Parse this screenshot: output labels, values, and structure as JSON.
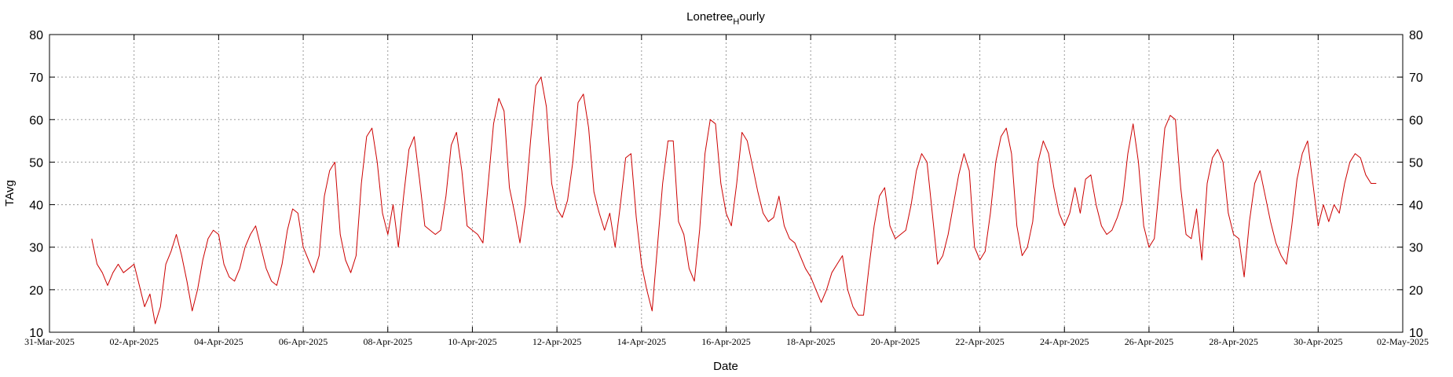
{
  "chart_data": {
    "type": "line",
    "title": "Lonetree",
    "title_subscript": "H",
    "title_suffix": "ourly",
    "xlabel": "Date",
    "ylabel": "TAvg",
    "ylim": [
      10,
      80
    ],
    "yticks": [
      "10",
      "20",
      "30",
      "40",
      "50",
      "60",
      "70",
      "80"
    ],
    "y_tick_values": [
      10,
      20,
      30,
      40,
      50,
      60,
      70,
      80
    ],
    "xlim": [
      "2025-03-31",
      "2025-05-02"
    ],
    "xticks": [
      "31-Mar-2025",
      "02-Apr-2025",
      "04-Apr-2025",
      "06-Apr-2025",
      "08-Apr-2025",
      "10-Apr-2025",
      "12-Apr-2025",
      "14-Apr-2025",
      "16-Apr-2025",
      "18-Apr-2025",
      "20-Apr-2025",
      "22-Apr-2025",
      "24-Apr-2025",
      "26-Apr-2025",
      "28-Apr-2025",
      "30-Apr-2025",
      "02-May-2025"
    ],
    "x_tick_dates": [
      "2025-03-31",
      "2025-04-02",
      "2025-04-04",
      "2025-04-06",
      "2025-04-08",
      "2025-04-10",
      "2025-04-12",
      "2025-04-14",
      "2025-04-16",
      "2025-04-18",
      "2025-04-20",
      "2025-04-22",
      "2025-04-24",
      "2025-04-26",
      "2025-04-28",
      "2025-04-30",
      "2025-05-02"
    ],
    "grid": true,
    "series": [
      {
        "color": "#cc0000",
        "x": [
          "2025-04-01T00:00",
          "2025-04-01T03:00",
          "2025-04-01T06:00",
          "2025-04-01T09:00",
          "2025-04-01T12:00",
          "2025-04-01T15:00",
          "2025-04-01T18:00",
          "2025-04-01T21:00",
          "2025-04-02T00:00",
          "2025-04-02T03:00",
          "2025-04-02T06:00",
          "2025-04-02T09:00",
          "2025-04-02T12:00",
          "2025-04-02T15:00",
          "2025-04-02T18:00",
          "2025-04-02T21:00",
          "2025-04-03T00:00",
          "2025-04-03T03:00",
          "2025-04-03T06:00",
          "2025-04-03T09:00",
          "2025-04-03T12:00",
          "2025-04-03T15:00",
          "2025-04-03T18:00",
          "2025-04-03T21:00",
          "2025-04-04T00:00",
          "2025-04-04T03:00",
          "2025-04-04T06:00",
          "2025-04-04T09:00",
          "2025-04-04T12:00",
          "2025-04-04T15:00",
          "2025-04-04T18:00",
          "2025-04-04T21:00",
          "2025-04-05T00:00",
          "2025-04-05T03:00",
          "2025-04-05T06:00",
          "2025-04-05T09:00",
          "2025-04-05T12:00",
          "2025-04-05T15:00",
          "2025-04-05T18:00",
          "2025-04-05T21:00",
          "2025-04-06T00:00",
          "2025-04-06T03:00",
          "2025-04-06T06:00",
          "2025-04-06T09:00",
          "2025-04-06T12:00",
          "2025-04-06T15:00",
          "2025-04-06T18:00",
          "2025-04-06T21:00",
          "2025-04-07T00:00",
          "2025-04-07T03:00",
          "2025-04-07T06:00",
          "2025-04-07T09:00",
          "2025-04-07T12:00",
          "2025-04-07T15:00",
          "2025-04-07T18:00",
          "2025-04-07T21:00",
          "2025-04-08T00:00",
          "2025-04-08T03:00",
          "2025-04-08T06:00",
          "2025-04-08T09:00",
          "2025-04-08T12:00",
          "2025-04-08T15:00",
          "2025-04-08T18:00",
          "2025-04-08T21:00",
          "2025-04-09T00:00",
          "2025-04-09T03:00",
          "2025-04-09T06:00",
          "2025-04-09T09:00",
          "2025-04-09T12:00",
          "2025-04-09T15:00",
          "2025-04-09T18:00",
          "2025-04-09T21:00",
          "2025-04-10T00:00",
          "2025-04-10T03:00",
          "2025-04-10T06:00",
          "2025-04-10T09:00",
          "2025-04-10T12:00",
          "2025-04-10T15:00",
          "2025-04-10T18:00",
          "2025-04-10T21:00",
          "2025-04-11T00:00",
          "2025-04-11T03:00",
          "2025-04-11T06:00",
          "2025-04-11T09:00",
          "2025-04-11T12:00",
          "2025-04-11T15:00",
          "2025-04-11T18:00",
          "2025-04-11T21:00",
          "2025-04-12T00:00",
          "2025-04-12T03:00",
          "2025-04-12T06:00",
          "2025-04-12T09:00",
          "2025-04-12T12:00",
          "2025-04-12T15:00",
          "2025-04-12T18:00",
          "2025-04-12T21:00",
          "2025-04-13T00:00",
          "2025-04-13T03:00",
          "2025-04-13T06:00",
          "2025-04-13T09:00",
          "2025-04-13T12:00",
          "2025-04-13T15:00",
          "2025-04-13T18:00",
          "2025-04-13T21:00",
          "2025-04-14T00:00",
          "2025-04-14T03:00",
          "2025-04-14T06:00",
          "2025-04-14T09:00",
          "2025-04-14T12:00",
          "2025-04-14T15:00",
          "2025-04-14T18:00",
          "2025-04-14T21:00",
          "2025-04-15T00:00",
          "2025-04-15T03:00",
          "2025-04-15T06:00",
          "2025-04-15T09:00",
          "2025-04-15T12:00",
          "2025-04-15T15:00",
          "2025-04-15T18:00",
          "2025-04-15T21:00",
          "2025-04-16T00:00",
          "2025-04-16T03:00",
          "2025-04-16T06:00",
          "2025-04-16T09:00",
          "2025-04-16T12:00",
          "2025-04-16T15:00",
          "2025-04-16T18:00",
          "2025-04-16T21:00",
          "2025-04-17T00:00",
          "2025-04-17T03:00",
          "2025-04-17T06:00",
          "2025-04-17T09:00",
          "2025-04-17T12:00",
          "2025-04-17T15:00",
          "2025-04-17T18:00",
          "2025-04-17T21:00",
          "2025-04-18T00:00",
          "2025-04-18T03:00",
          "2025-04-18T06:00",
          "2025-04-18T09:00",
          "2025-04-18T12:00",
          "2025-04-18T15:00",
          "2025-04-18T18:00",
          "2025-04-18T21:00",
          "2025-04-19T00:00",
          "2025-04-19T03:00",
          "2025-04-19T06:00",
          "2025-04-19T09:00",
          "2025-04-19T12:00",
          "2025-04-19T15:00",
          "2025-04-19T18:00",
          "2025-04-19T21:00",
          "2025-04-20T00:00",
          "2025-04-20T03:00",
          "2025-04-20T06:00",
          "2025-04-20T09:00",
          "2025-04-20T12:00",
          "2025-04-20T15:00",
          "2025-04-20T18:00",
          "2025-04-20T21:00",
          "2025-04-21T00:00",
          "2025-04-21T03:00",
          "2025-04-21T06:00",
          "2025-04-21T09:00",
          "2025-04-21T12:00",
          "2025-04-21T15:00",
          "2025-04-21T18:00",
          "2025-04-21T21:00",
          "2025-04-22T00:00",
          "2025-04-22T03:00",
          "2025-04-22T06:00",
          "2025-04-22T09:00",
          "2025-04-22T12:00",
          "2025-04-22T15:00",
          "2025-04-22T18:00",
          "2025-04-22T21:00",
          "2025-04-23T00:00",
          "2025-04-23T03:00",
          "2025-04-23T06:00",
          "2025-04-23T09:00",
          "2025-04-23T12:00",
          "2025-04-23T15:00",
          "2025-04-23T18:00",
          "2025-04-23T21:00",
          "2025-04-24T00:00",
          "2025-04-24T03:00",
          "2025-04-24T06:00",
          "2025-04-24T09:00",
          "2025-04-24T12:00",
          "2025-04-24T15:00",
          "2025-04-24T18:00",
          "2025-04-24T21:00",
          "2025-04-25T00:00",
          "2025-04-25T03:00",
          "2025-04-25T06:00",
          "2025-04-25T09:00",
          "2025-04-25T12:00",
          "2025-04-25T15:00",
          "2025-04-25T18:00",
          "2025-04-25T21:00",
          "2025-04-26T00:00",
          "2025-04-26T03:00",
          "2025-04-26T06:00",
          "2025-04-26T09:00",
          "2025-04-26T12:00",
          "2025-04-26T15:00",
          "2025-04-26T18:00",
          "2025-04-26T21:00",
          "2025-04-27T00:00",
          "2025-04-27T03:00",
          "2025-04-27T06:00",
          "2025-04-27T09:00",
          "2025-04-27T12:00",
          "2025-04-27T15:00",
          "2025-04-27T18:00",
          "2025-04-27T21:00",
          "2025-04-28T00:00",
          "2025-04-28T03:00",
          "2025-04-28T06:00",
          "2025-04-28T09:00",
          "2025-04-28T12:00",
          "2025-04-28T15:00",
          "2025-04-28T18:00",
          "2025-04-28T21:00",
          "2025-04-29T00:00",
          "2025-04-29T03:00",
          "2025-04-29T06:00",
          "2025-04-29T09:00",
          "2025-04-29T12:00",
          "2025-04-29T15:00",
          "2025-04-29T18:00",
          "2025-04-29T21:00",
          "2025-04-30T00:00",
          "2025-04-30T03:00",
          "2025-04-30T06:00",
          "2025-04-30T09:00",
          "2025-04-30T12:00",
          "2025-04-30T15:00",
          "2025-04-30T18:00",
          "2025-04-30T21:00",
          "2025-05-01T00:00",
          "2025-05-01T03:00",
          "2025-05-01T06:00",
          "2025-05-01T09:00"
        ],
        "y": [
          32,
          26,
          24,
          21,
          24,
          26,
          24,
          25,
          26,
          21,
          16,
          19,
          12,
          16,
          26,
          29,
          33,
          28,
          22,
          15,
          20,
          27,
          32,
          34,
          33,
          26,
          23,
          22,
          25,
          30,
          33,
          35,
          30,
          25,
          22,
          21,
          26,
          34,
          39,
          38,
          30,
          27,
          24,
          28,
          42,
          48,
          50,
          33,
          27,
          24,
          28,
          45,
          56,
          58,
          50,
          38,
          33,
          40,
          30,
          42,
          53,
          56,
          46,
          35,
          34,
          33,
          34,
          42,
          54,
          57,
          48,
          35,
          34,
          33,
          31,
          45,
          59,
          65,
          62,
          44,
          38,
          31,
          40,
          55,
          68,
          70,
          63,
          45,
          39,
          37,
          41,
          50,
          64,
          66,
          58,
          43,
          38,
          34,
          38,
          30,
          40,
          51,
          52,
          37,
          26,
          20,
          15,
          30,
          45,
          55,
          55,
          36,
          33,
          25,
          22,
          34,
          52,
          60,
          59,
          45,
          38,
          35,
          45,
          57,
          55,
          49,
          43,
          38,
          36,
          37,
          42,
          35,
          32,
          31,
          28,
          25,
          23,
          20,
          17,
          20,
          24,
          26,
          28,
          20,
          16,
          14,
          14,
          25,
          35,
          42,
          44,
          35,
          32,
          33,
          34,
          40,
          48,
          52,
          50,
          38,
          26,
          28,
          33,
          40,
          47,
          52,
          48,
          30,
          27,
          29,
          38,
          50,
          56,
          58,
          52,
          35,
          28,
          30,
          36,
          50,
          55,
          52,
          44,
          38,
          35,
          38,
          44,
          38,
          46,
          47,
          40,
          35,
          33,
          34,
          37,
          41,
          52,
          59,
          50,
          35,
          30,
          32,
          45,
          58,
          61,
          60,
          44,
          33,
          32,
          39,
          27,
          45,
          51,
          53,
          50,
          38,
          33,
          32,
          23,
          36,
          45,
          48,
          42,
          36,
          31,
          28,
          26,
          35,
          46,
          52,
          55,
          45,
          35,
          40,
          36,
          40,
          38,
          45,
          50,
          52,
          51,
          47,
          45,
          45
        ]
      }
    ]
  }
}
